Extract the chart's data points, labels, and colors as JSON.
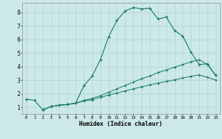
{
  "xlabel": "Humidex (Indice chaleur)",
  "xlim": [
    -0.5,
    23.5
  ],
  "ylim": [
    0.5,
    8.7
  ],
  "xticks": [
    0,
    1,
    2,
    3,
    4,
    5,
    6,
    7,
    8,
    9,
    10,
    11,
    12,
    13,
    14,
    15,
    16,
    17,
    18,
    19,
    20,
    21,
    22,
    23
  ],
  "yticks": [
    1,
    2,
    3,
    4,
    5,
    6,
    7,
    8
  ],
  "bg_color": "#cce8e8",
  "grid_color": "#aad4d4",
  "line_color": "#1a7a6e",
  "line1_x": [
    0,
    1,
    2,
    3,
    4,
    5,
    6,
    7,
    8,
    9,
    10,
    11,
    12,
    13,
    14,
    15,
    16,
    17,
    18,
    19,
    20,
    21,
    22,
    23
  ],
  "line1_y": [
    1.6,
    1.5,
    0.8,
    1.05,
    1.15,
    1.2,
    1.3,
    2.6,
    3.3,
    4.5,
    6.2,
    7.4,
    8.1,
    8.35,
    8.25,
    8.3,
    7.5,
    7.65,
    6.65,
    6.25,
    5.05,
    4.15,
    4.2,
    3.35
  ],
  "line2_x": [
    2,
    3,
    4,
    5,
    6,
    7,
    8,
    9,
    10,
    11,
    12,
    13,
    14,
    15,
    16,
    17,
    18,
    19,
    20,
    21,
    22,
    23
  ],
  "line2_y": [
    0.8,
    1.05,
    1.15,
    1.2,
    1.3,
    1.5,
    1.65,
    1.85,
    2.1,
    2.35,
    2.6,
    2.85,
    3.1,
    3.3,
    3.55,
    3.75,
    3.95,
    4.15,
    4.35,
    4.5,
    4.15,
    3.35
  ],
  "line3_x": [
    2,
    3,
    4,
    5,
    6,
    7,
    8,
    9,
    10,
    11,
    12,
    13,
    14,
    15,
    16,
    17,
    18,
    19,
    20,
    21,
    22,
    23
  ],
  "line3_y": [
    0.8,
    1.05,
    1.15,
    1.2,
    1.3,
    1.45,
    1.55,
    1.72,
    1.9,
    2.05,
    2.2,
    2.35,
    2.5,
    2.65,
    2.78,
    2.9,
    3.02,
    3.15,
    3.28,
    3.38,
    3.2,
    3.0
  ]
}
